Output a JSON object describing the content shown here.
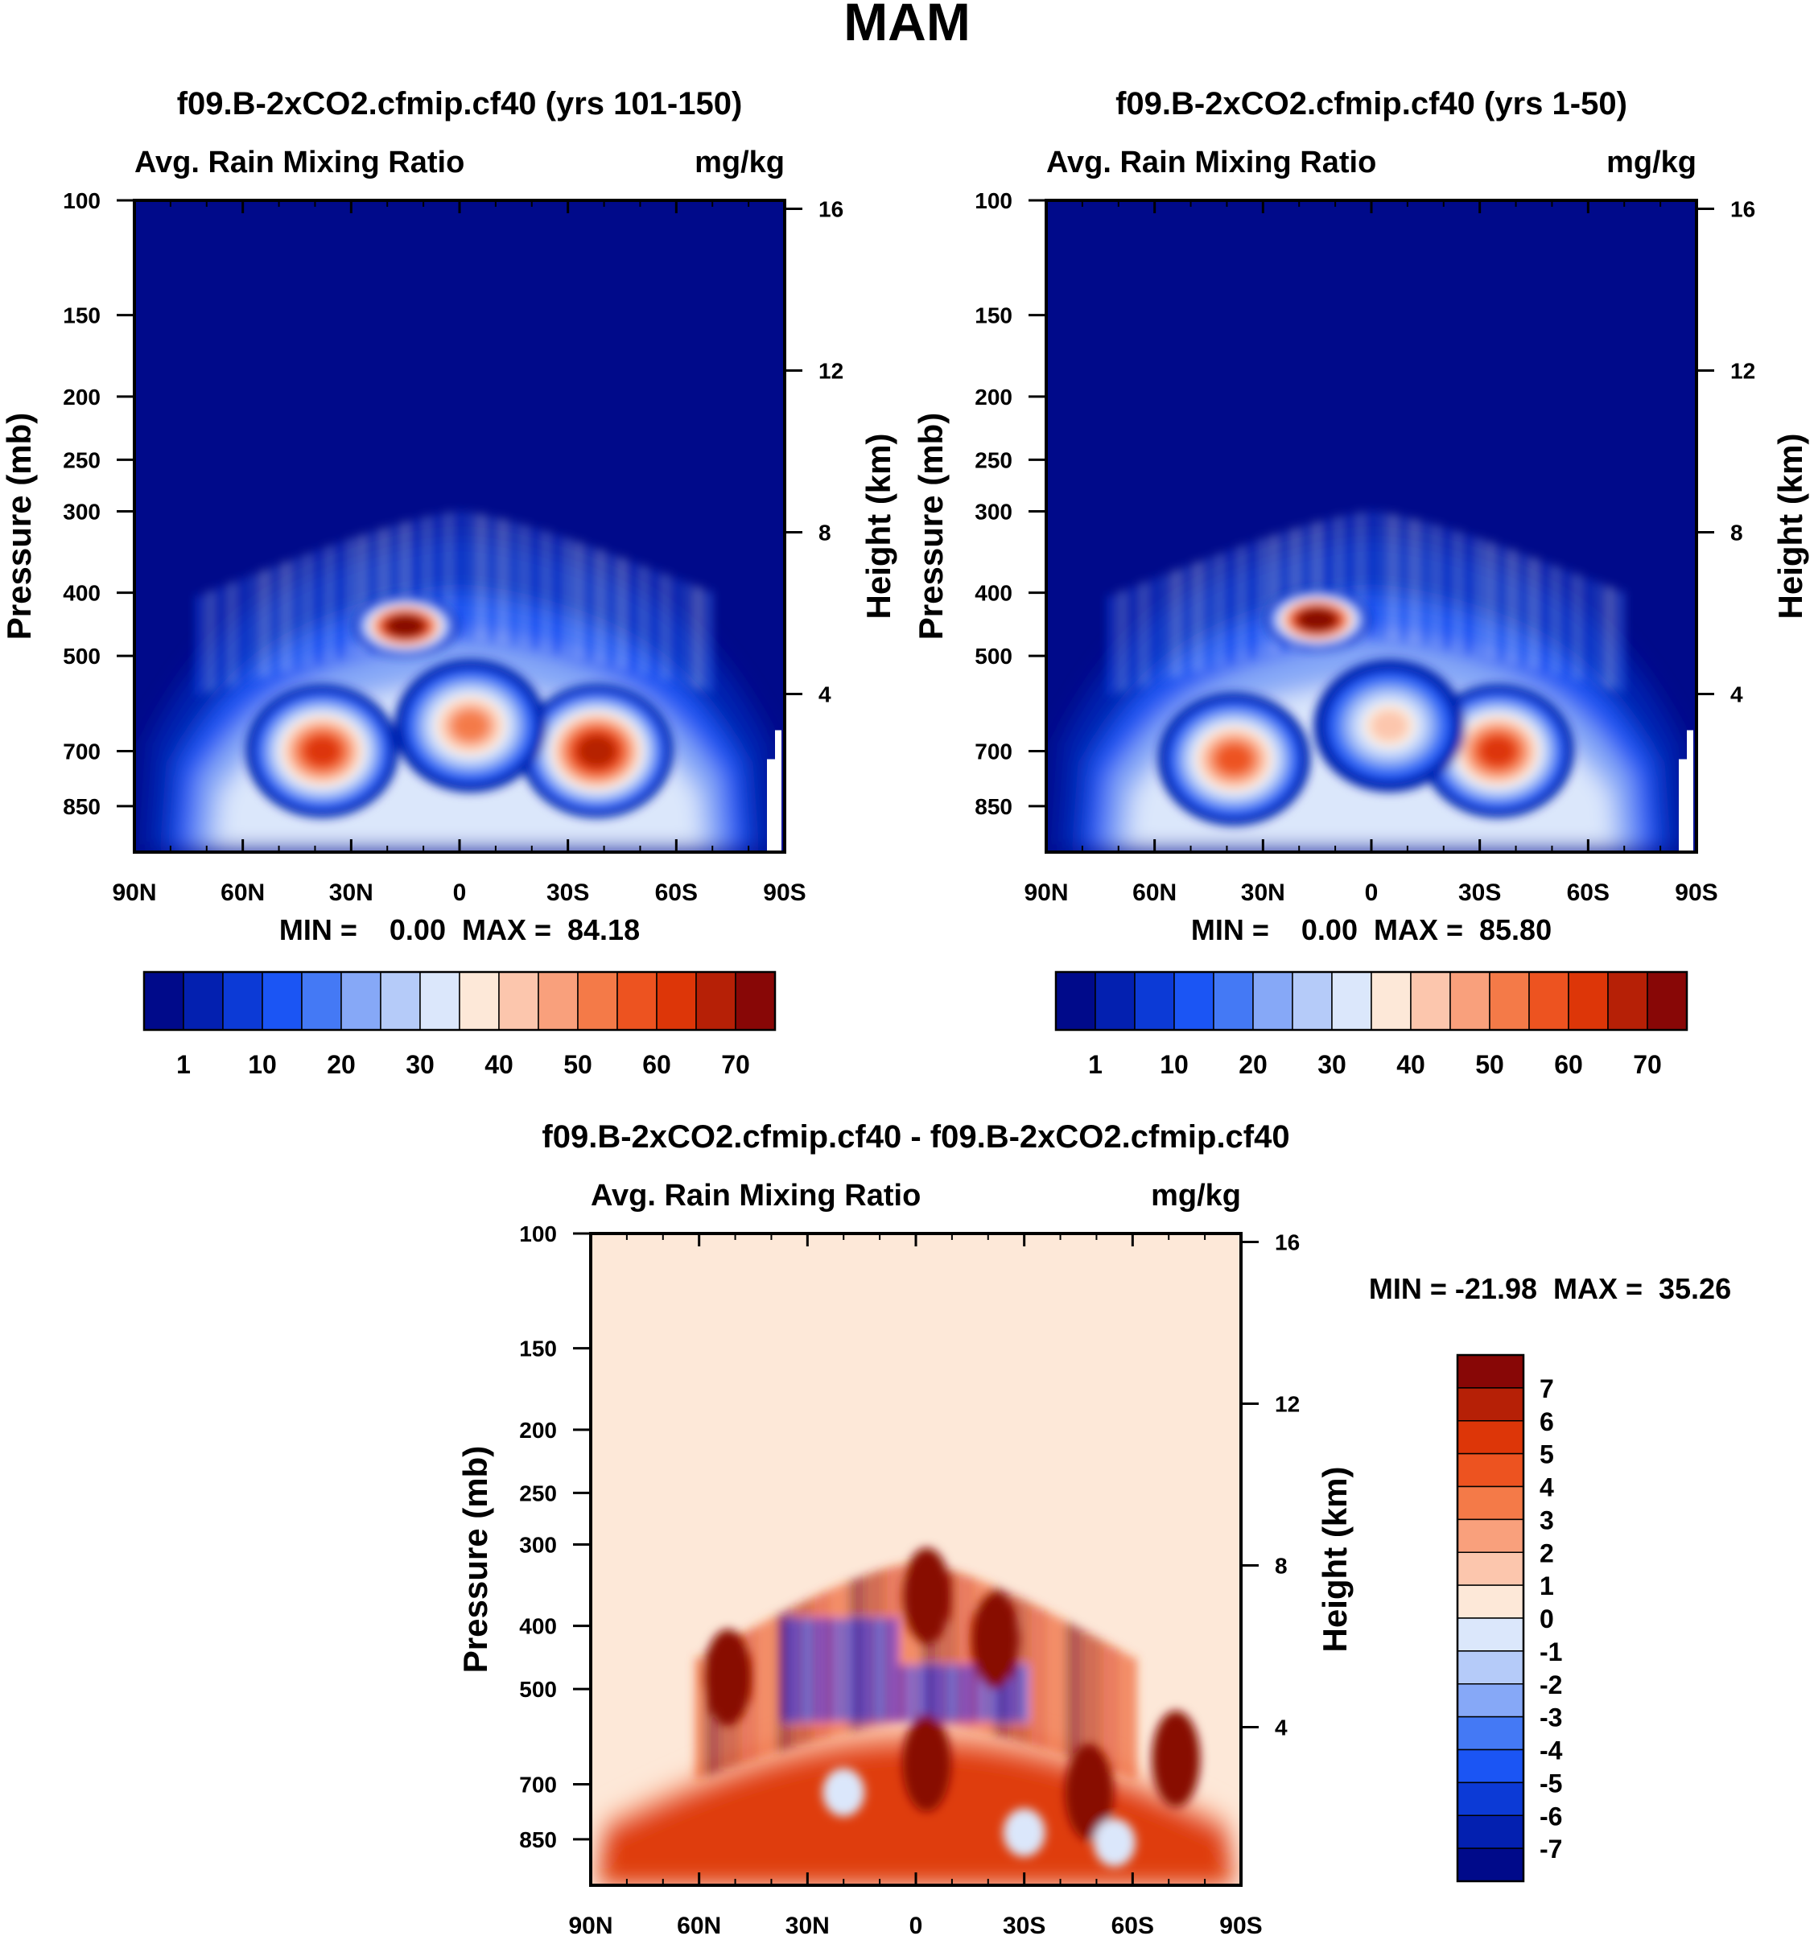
{
  "figure_title": "MAM",
  "colors": {
    "abs_scale": [
      "#000a8a",
      "#0320b0",
      "#0c3ad6",
      "#1b55f4",
      "#4479f5",
      "#86a8f7",
      "#b5cbf9",
      "#dbe7fb",
      "#fde8d8",
      "#fcc6ad",
      "#f9a07c",
      "#f47a48",
      "#ed5320",
      "#dd3608",
      "#b62006",
      "#880706"
    ],
    "diff_scale": [
      "#000a8a",
      "#0320b0",
      "#0c3ad6",
      "#1b55f4",
      "#4479f5",
      "#86a8f7",
      "#b5cbf9",
      "#dbe7fb",
      "#fde8d8",
      "#fcc6ad",
      "#f9a07c",
      "#f47a48",
      "#ed5320",
      "#dd3608",
      "#b62006",
      "#880706"
    ]
  },
  "chart_data": [
    {
      "type": "heatmap",
      "panel": "top-left",
      "title": "f09.B-2xCO2.cfmip.cf40 (yrs 101-150)",
      "left_string": "Avg. Rain Mixing Ratio",
      "right_string": "mg/kg",
      "ylabel": "Pressure (mb)",
      "ylabel_right": "Height (km)",
      "x_ticks": [
        "90N",
        "60N",
        "30N",
        "0",
        "30S",
        "60S",
        "90S"
      ],
      "y_ticks": [
        "100",
        "150",
        "200",
        "250",
        "300",
        "400",
        "500",
        "700",
        "850"
      ],
      "y_ticks_right": [
        "16",
        "12",
        "8",
        "4"
      ],
      "min_max_text": "MIN =    0.00  MAX =  84.18",
      "min": 0.0,
      "max": 84.18,
      "colorbar": {
        "orientation": "horizontal",
        "labels": [
          "1",
          "10",
          "20",
          "30",
          "40",
          "50",
          "60",
          "70"
        ]
      },
      "features": [
        {
          "lat": 15,
          "p": 450,
          "value": 84
        },
        {
          "lat": 38,
          "p": 700,
          "value": 60
        },
        {
          "lat": -38,
          "p": 700,
          "value": 68
        },
        {
          "lat": -3,
          "p": 640,
          "value": 50
        }
      ]
    },
    {
      "type": "heatmap",
      "panel": "top-right",
      "title": "f09.B-2xCO2.cfmip.cf40 (yrs 1-50)",
      "left_string": "Avg. Rain Mixing Ratio",
      "right_string": "mg/kg",
      "ylabel": "Pressure (mb)",
      "ylabel_right": "Height (km)",
      "x_ticks": [
        "90N",
        "60N",
        "30N",
        "0",
        "30S",
        "60S",
        "90S"
      ],
      "y_ticks": [
        "100",
        "150",
        "200",
        "250",
        "300",
        "400",
        "500",
        "700",
        "850"
      ],
      "y_ticks_right": [
        "16",
        "12",
        "8",
        "4"
      ],
      "min_max_text": "MIN =    0.00  MAX =  85.80",
      "min": 0.0,
      "max": 85.8,
      "colorbar": {
        "orientation": "horizontal",
        "labels": [
          "1",
          "10",
          "20",
          "30",
          "40",
          "50",
          "60",
          "70"
        ]
      },
      "features": [
        {
          "lat": 15,
          "p": 440,
          "value": 86
        },
        {
          "lat": 38,
          "p": 720,
          "value": 55
        },
        {
          "lat": -35,
          "p": 700,
          "value": 60
        },
        {
          "lat": -5,
          "p": 640,
          "value": 40
        }
      ]
    },
    {
      "type": "heatmap",
      "panel": "bottom",
      "title": "f09.B-2xCO2.cfmip.cf40 - f09.B-2xCO2.cfmip.cf40",
      "left_string": "Avg. Rain Mixing Ratio",
      "right_string": "mg/kg",
      "ylabel": "Pressure (mb)",
      "ylabel_right": "Height (km)",
      "x_ticks": [
        "90N",
        "60N",
        "30N",
        "0",
        "30S",
        "60S",
        "90S"
      ],
      "y_ticks": [
        "100",
        "150",
        "200",
        "250",
        "300",
        "400",
        "500",
        "700",
        "850"
      ],
      "y_ticks_right": [
        "16",
        "12",
        "8",
        "4"
      ],
      "min_max_text": "MIN = -21.98  MAX =  35.26",
      "min": -21.98,
      "max": 35.26,
      "colorbar": {
        "orientation": "vertical",
        "labels": [
          "7",
          "6",
          "5",
          "4",
          "3",
          "2",
          "1",
          "0",
          "-1",
          "-2",
          "-3",
          "-4",
          "-5",
          "-6",
          "-7"
        ]
      }
    }
  ]
}
